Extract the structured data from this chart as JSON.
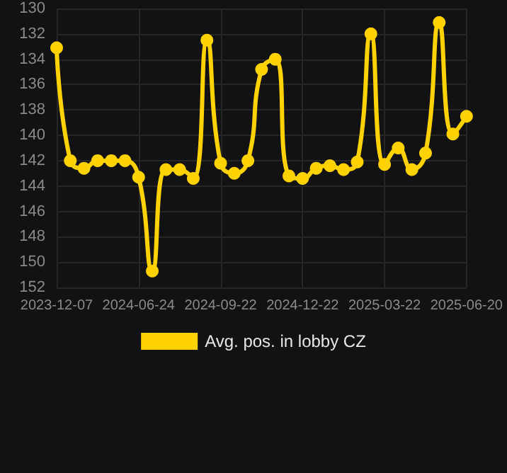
{
  "chart_data": {
    "type": "line",
    "categories": [
      "2023-12-07",
      null,
      null,
      null,
      null,
      null,
      "2024-06-24",
      null,
      null,
      null,
      null,
      null,
      "2024-09-22",
      null,
      null,
      null,
      null,
      null,
      "2024-12-22",
      null,
      null,
      null,
      null,
      null,
      "2025-03-22",
      null,
      null,
      null,
      null,
      null,
      "2025-06-20"
    ],
    "series": [
      {
        "name": "Avg. pos. in lobby CZ",
        "color": "#ffd200",
        "values": [
          133.1,
          142.0,
          142.6,
          142.0,
          142.0,
          142.0,
          143.3,
          150.7,
          142.7,
          142.7,
          143.4,
          132.5,
          142.2,
          143.0,
          142.0,
          134.8,
          134.0,
          143.2,
          143.4,
          142.6,
          142.4,
          142.7,
          142.1,
          132.0,
          142.3,
          141.0,
          142.7,
          141.4,
          131.1,
          139.9,
          138.5
        ]
      }
    ],
    "ylim": [
      152,
      130
    ],
    "yticks": [
      130,
      132,
      134,
      136,
      138,
      140,
      142,
      144,
      146,
      148,
      150,
      152
    ],
    "grid": true,
    "legend": "bottom",
    "marker": "circle",
    "line_style": "solid"
  }
}
